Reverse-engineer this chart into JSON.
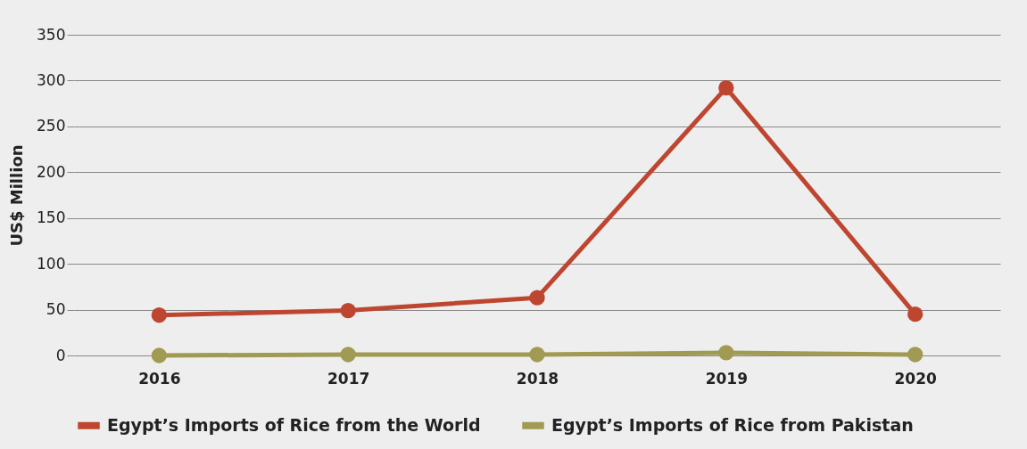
{
  "chart_data": {
    "type": "line",
    "ylabel": "US$ Million",
    "categories": [
      "2016",
      "2017",
      "2018",
      "2019",
      "2020"
    ],
    "series": [
      {
        "name": "Egypt’s Imports of Rice from the World",
        "color": "#be4630",
        "values": [
          44,
          49,
          63,
          292,
          45
        ]
      },
      {
        "name": "Egypt’s Imports of Rice from Pakistan",
        "color": "#a09a52",
        "values": [
          0,
          1,
          1,
          3,
          1
        ]
      }
    ],
    "ylim": [
      0,
      350
    ],
    "yticks": [
      0,
      50,
      100,
      150,
      200,
      250,
      300,
      350
    ],
    "grid": "y",
    "legend": "bottom",
    "marker": "circle",
    "line_style": "solid"
  }
}
